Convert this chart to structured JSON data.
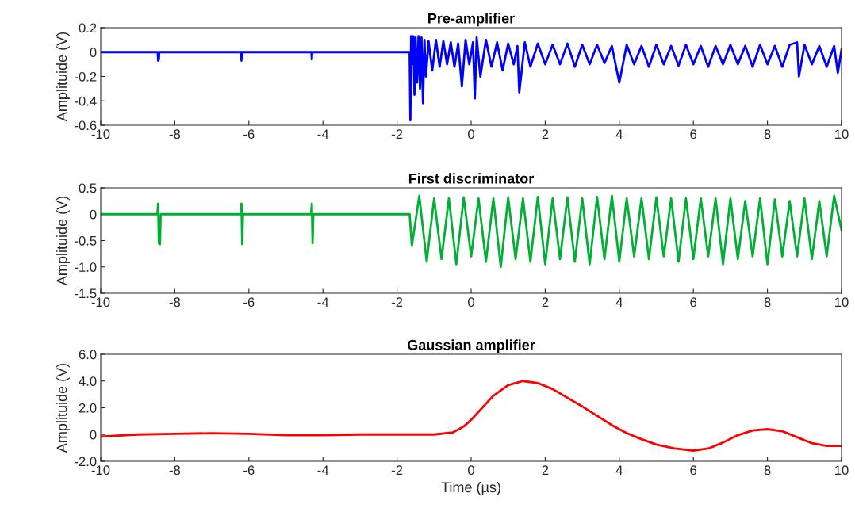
{
  "chart_data": [
    {
      "type": "line",
      "title": "Pre-amplifier",
      "ylabel": "Amplituide (V)",
      "xlim": [
        -10,
        10
      ],
      "xticks": [
        -10,
        -8,
        -6,
        -4,
        -2,
        0,
        2,
        4,
        6,
        8,
        10
      ],
      "ylim": [
        -0.6,
        0.2
      ],
      "yticks": [
        {
          "value": -0.6,
          "label": "-0.6"
        },
        {
          "value": -0.4,
          "label": "-0.4"
        },
        {
          "value": -0.2,
          "label": "-0.2"
        },
        0,
        0.2
      ],
      "grid": false,
      "series": [
        {
          "color": "#0000ff",
          "x": [
            -10,
            -8.46,
            -8.45,
            -8.43,
            -8.42,
            -6.21,
            -6.2,
            -6.19,
            -4.31,
            -4.3,
            -4.29,
            -1.66,
            -1.64,
            -1.62,
            -1.6,
            -1.56,
            -1.53,
            -1.5,
            -1.46,
            -1.42,
            -1.38,
            -1.34,
            -1.3,
            -1.26,
            -1.22,
            -1.15,
            -1.05,
            -0.95,
            -0.85,
            -0.75,
            -0.65,
            -0.55,
            -0.45,
            -0.35,
            -0.25,
            -0.15,
            -0.05,
            0.05,
            0.1,
            0.15,
            0.25,
            0.4,
            0.55,
            0.7,
            0.85,
            1.0,
            1.15,
            1.25,
            1.3,
            1.45,
            1.6,
            1.8,
            2.0,
            2.2,
            2.4,
            2.6,
            2.8,
            3.0,
            3.2,
            3.4,
            3.6,
            3.8,
            4.0,
            4.2,
            4.4,
            4.6,
            4.8,
            5.0,
            5.2,
            5.4,
            5.6,
            5.8,
            6.0,
            6.2,
            6.4,
            6.6,
            6.8,
            7.0,
            7.2,
            7.4,
            7.6,
            7.8,
            8.0,
            8.2,
            8.4,
            8.6,
            8.8,
            8.85,
            9.0,
            9.2,
            9.4,
            9.6,
            9.8,
            9.9,
            10
          ],
          "values": [
            0,
            0,
            -0.07,
            -0.06,
            0,
            0,
            -0.07,
            0,
            0,
            -0.06,
            0,
            0,
            -0.56,
            0.13,
            -0.1,
            0.13,
            -0.35,
            0.12,
            -0.25,
            0.13,
            -0.3,
            0.12,
            -0.42,
            0.1,
            -0.2,
            0.09,
            -0.15,
            0.1,
            -0.12,
            0.09,
            -0.1,
            0.08,
            -0.12,
            0.07,
            -0.28,
            0.1,
            -0.1,
            0.08,
            -0.38,
            0.12,
            -0.2,
            0.1,
            -0.12,
            0.08,
            -0.15,
            0.07,
            -0.1,
            0.05,
            -0.33,
            0.08,
            -0.12,
            0.07,
            -0.1,
            0.06,
            -0.1,
            0.07,
            -0.12,
            0.06,
            -0.1,
            0.06,
            -0.09,
            0.05,
            -0.25,
            0.06,
            -0.1,
            0.05,
            -0.12,
            0.06,
            -0.1,
            0.05,
            -0.11,
            0.06,
            -0.1,
            0.05,
            -0.12,
            0.05,
            -0.1,
            0.06,
            -0.1,
            0.05,
            -0.12,
            0.06,
            -0.1,
            0.05,
            -0.12,
            0.06,
            0.08,
            -0.2,
            0.06,
            -0.1,
            0.05,
            -0.12,
            0.05,
            -0.17,
            0.02
          ]
        }
      ]
    },
    {
      "type": "line",
      "title": "First discriminator",
      "ylabel": "Amplituide (V)",
      "xlim": [
        -10,
        10
      ],
      "xticks": [
        -10,
        -8,
        -6,
        -4,
        -2,
        0,
        2,
        4,
        6,
        8,
        10
      ],
      "ylim": [
        -1.5,
        0.5
      ],
      "yticks": [
        {
          "value": -1.5,
          "label": "-1.5"
        },
        {
          "value": -1.0,
          "label": "-1.0"
        },
        {
          "value": -0.5,
          "label": "-0.5"
        },
        0,
        0.5
      ],
      "grid": false,
      "series": [
        {
          "color": "#00b036",
          "x": [
            -10,
            -8.47,
            -8.45,
            -8.43,
            -8.4,
            -8.38,
            -6.22,
            -6.2,
            -6.18,
            -6.16,
            -4.32,
            -4.3,
            -4.28,
            -4.26,
            -1.66,
            -1.6,
            -1.4,
            -1.2,
            -1.0,
            -0.8,
            -0.6,
            -0.4,
            -0.2,
            0,
            0.2,
            0.4,
            0.6,
            0.8,
            1.0,
            1.2,
            1.4,
            1.6,
            1.8,
            2.0,
            2.2,
            2.4,
            2.6,
            2.8,
            3.0,
            3.2,
            3.4,
            3.6,
            3.8,
            4.0,
            4.2,
            4.4,
            4.6,
            4.8,
            5.0,
            5.2,
            5.4,
            5.6,
            5.8,
            6.0,
            6.2,
            6.4,
            6.6,
            6.8,
            7.0,
            7.2,
            7.4,
            7.6,
            7.8,
            8.0,
            8.2,
            8.4,
            8.6,
            8.8,
            9.0,
            9.2,
            9.4,
            9.6,
            9.8,
            10
          ],
          "values": [
            0,
            0,
            0.2,
            -0.55,
            -0.57,
            0,
            0,
            0.2,
            -0.57,
            0,
            0,
            0.2,
            -0.55,
            0,
            0,
            -0.6,
            0.35,
            -0.9,
            0.3,
            -0.85,
            0.3,
            -0.95,
            0.32,
            -0.8,
            0.3,
            -0.9,
            0.3,
            -1.0,
            0.32,
            -0.85,
            0.3,
            -0.9,
            0.33,
            -0.95,
            0.3,
            -0.85,
            0.32,
            -0.9,
            0.3,
            -0.95,
            0.33,
            -0.85,
            0.35,
            -0.9,
            0.3,
            -0.8,
            0.3,
            -0.85,
            0.32,
            -0.8,
            0.3,
            -0.9,
            0.3,
            -0.85,
            0.3,
            -0.8,
            0.3,
            -0.95,
            0.3,
            -0.85,
            0.25,
            -0.8,
            0.3,
            -0.95,
            0.28,
            -0.8,
            0.25,
            -0.8,
            0.3,
            -0.85,
            0.25,
            -0.8,
            0.35,
            -0.3
          ]
        }
      ]
    },
    {
      "type": "line",
      "title": "Gaussian amplifier",
      "ylabel": "Amplituide (V)",
      "xlabel": "Time (µs)",
      "xlim": [
        -10,
        10
      ],
      "xticks": [
        -10,
        -8,
        -6,
        -4,
        -2,
        0,
        2,
        4,
        6,
        8,
        10
      ],
      "ylim": [
        -2,
        6
      ],
      "yticks": [
        {
          "value": -2,
          "label": "-2.0"
        },
        0,
        {
          "value": 2,
          "label": "2.0"
        },
        {
          "value": 4,
          "label": "4.0"
        },
        {
          "value": 6,
          "label": "6.0"
        }
      ],
      "grid": false,
      "series": [
        {
          "color": "#ff0000",
          "x": [
            -10,
            -9,
            -8,
            -7,
            -6,
            -5,
            -4,
            -3,
            -2,
            -1,
            -0.5,
            -0.2,
            0,
            0.3,
            0.6,
            1.0,
            1.4,
            1.8,
            2.2,
            2.6,
            3.0,
            3.4,
            3.8,
            4.2,
            4.6,
            5.0,
            5.5,
            6.0,
            6.4,
            6.8,
            7.2,
            7.6,
            8.0,
            8.4,
            8.8,
            9.2,
            9.6,
            10
          ],
          "values": [
            -0.15,
            0,
            0.05,
            0.1,
            0.05,
            -0.05,
            -0.05,
            0,
            0,
            0,
            0.15,
            0.6,
            1.1,
            2.0,
            2.9,
            3.7,
            4.0,
            3.85,
            3.4,
            2.75,
            2.1,
            1.4,
            0.7,
            0.1,
            -0.35,
            -0.75,
            -1.05,
            -1.2,
            -1.05,
            -0.6,
            -0.05,
            0.3,
            0.4,
            0.25,
            -0.2,
            -0.65,
            -0.85,
            -0.85
          ]
        }
      ]
    }
  ]
}
